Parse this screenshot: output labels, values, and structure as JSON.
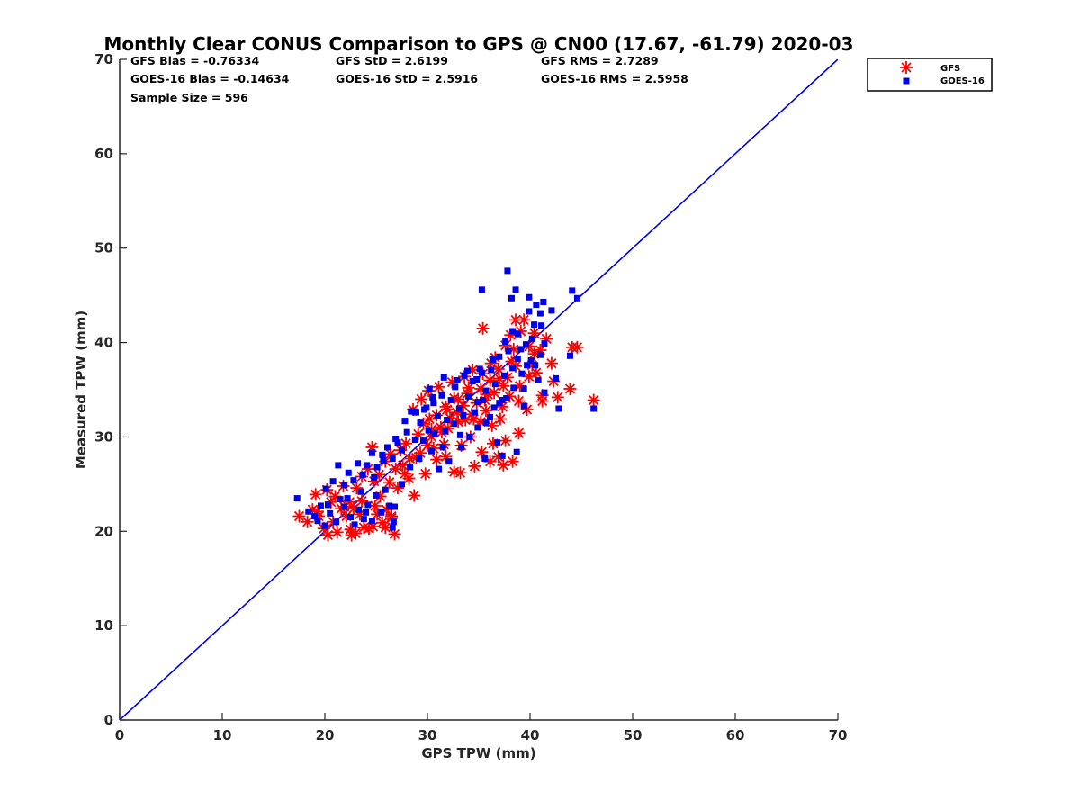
{
  "chart_data": {
    "type": "scatter",
    "title": "Monthly Clear CONUS Comparison to GPS @ CN00 (17.67, -61.79) 2020-03",
    "xlabel": "GPS TPW (mm)",
    "ylabel": "Measured TPW (mm)",
    "xlim": [
      0,
      70
    ],
    "ylim": [
      0,
      70
    ],
    "xticks": [
      "0",
      "10",
      "20",
      "30",
      "40",
      "50",
      "60",
      "70"
    ],
    "yticks": [
      "0",
      "10",
      "20",
      "30",
      "40",
      "50",
      "60",
      "70"
    ],
    "grid": false,
    "legend_position": "top-right-outside",
    "stats": {
      "gfs_bias": "GFS Bias = -0.76334",
      "gfs_std": "GFS StD = 2.6199",
      "gfs_rms": "GFS RMS = 2.7289",
      "goes_bias": "GOES-16 Bias = -0.14634",
      "goes_std": "GOES-16 StD = 2.5916",
      "goes_rms": "GOES-16 RMS = 2.5958",
      "sample_size": "Sample Size = 596"
    },
    "reference_line": {
      "name": "1:1",
      "x": [
        0,
        70
      ],
      "y": [
        0,
        70
      ],
      "color": "#0000e6"
    },
    "series": [
      {
        "name": "GFS",
        "marker": "asterisk",
        "color": "#ff0000",
        "points": [
          [
            17.5,
            21.6
          ],
          [
            18.3,
            21.0
          ],
          [
            18.8,
            22.3
          ],
          [
            19.4,
            21.6
          ],
          [
            19.9,
            20.3
          ],
          [
            20.3,
            19.6
          ],
          [
            20.8,
            21.0
          ],
          [
            21.2,
            19.9
          ],
          [
            21.6,
            22.4
          ],
          [
            22.1,
            21.6
          ],
          [
            22.5,
            20.2
          ],
          [
            23.0,
            19.8
          ],
          [
            23.4,
            21.8
          ],
          [
            23.8,
            20.4
          ],
          [
            24.3,
            20.3
          ],
          [
            24.7,
            20.5
          ],
          [
            25.1,
            21.8
          ],
          [
            25.6,
            20.9
          ],
          [
            26.0,
            22.3
          ],
          [
            26.5,
            21.4
          ],
          [
            26.8,
            19.7
          ],
          [
            20.2,
            24.4
          ],
          [
            21.0,
            23.7
          ],
          [
            21.8,
            24.8
          ],
          [
            22.4,
            23.1
          ],
          [
            23.1,
            24.6
          ],
          [
            23.6,
            25.8
          ],
          [
            24.2,
            26.6
          ],
          [
            24.8,
            25.3
          ],
          [
            25.3,
            26.0
          ],
          [
            25.9,
            27.4
          ],
          [
            26.4,
            28.2
          ],
          [
            26.9,
            26.6
          ],
          [
            27.4,
            28.6
          ],
          [
            27.9,
            29.3
          ],
          [
            28.3,
            27.7
          ],
          [
            28.7,
            23.8
          ],
          [
            29.1,
            30.3
          ],
          [
            29.6,
            31.4
          ],
          [
            30.0,
            29.1
          ],
          [
            30.4,
            30.8
          ],
          [
            30.9,
            32.3
          ],
          [
            31.3,
            31.0
          ],
          [
            31.8,
            33.2
          ],
          [
            32.2,
            32.0
          ],
          [
            32.6,
            34.1
          ],
          [
            33.0,
            31.6
          ],
          [
            33.5,
            33.3
          ],
          [
            33.9,
            34.6
          ],
          [
            34.3,
            32.4
          ],
          [
            34.8,
            33.6
          ],
          [
            35.2,
            35.1
          ],
          [
            35.6,
            33.9
          ],
          [
            36.1,
            36.0
          ],
          [
            36.5,
            34.7
          ],
          [
            36.9,
            37.2
          ],
          [
            37.4,
            35.4
          ],
          [
            37.8,
            36.3
          ],
          [
            38.2,
            38.0
          ],
          [
            38.6,
            37.5
          ],
          [
            39.0,
            35.4
          ],
          [
            39.4,
            42.4
          ],
          [
            38.1,
            40.8
          ],
          [
            38.6,
            42.4
          ],
          [
            39.9,
            39.6
          ],
          [
            40.4,
            38.8
          ],
          [
            41.0,
            39.2
          ],
          [
            41.6,
            40.4
          ],
          [
            42.1,
            37.8
          ],
          [
            40.6,
            36.8
          ],
          [
            41.2,
            34.4
          ],
          [
            42.3,
            35.9
          ],
          [
            42.7,
            34.2
          ],
          [
            43.9,
            35.1
          ],
          [
            44.1,
            39.5
          ],
          [
            44.6,
            39.5
          ],
          [
            46.2,
            33.9
          ],
          [
            35.4,
            41.5
          ],
          [
            31.8,
            27.9
          ],
          [
            32.6,
            26.3
          ],
          [
            33.2,
            26.2
          ],
          [
            34.6,
            26.9
          ],
          [
            36.1,
            27.4
          ],
          [
            36.9,
            27.9
          ],
          [
            37.4,
            27.0
          ],
          [
            38.3,
            27.4
          ],
          [
            38.9,
            30.4
          ],
          [
            37.6,
            29.6
          ],
          [
            36.4,
            29.3
          ],
          [
            35.3,
            28.4
          ],
          [
            34.2,
            30.0
          ],
          [
            33.3,
            29.1
          ],
          [
            29.8,
            26.1
          ],
          [
            30.9,
            27.6
          ],
          [
            28.6,
            32.9
          ],
          [
            29.4,
            34.0
          ],
          [
            30.1,
            34.9
          ],
          [
            31.1,
            35.3
          ],
          [
            32.4,
            35.8
          ],
          [
            33.6,
            36.4
          ],
          [
            34.4,
            37.1
          ],
          [
            36.6,
            38.4
          ],
          [
            40.2,
            37.6
          ],
          [
            37.6,
            39.7
          ],
          [
            39.9,
            36.4
          ],
          [
            38.9,
            33.8
          ],
          [
            39.7,
            32.9
          ],
          [
            41.2,
            33.8
          ],
          [
            36.3,
            31.2
          ],
          [
            37.1,
            31.9
          ],
          [
            35.2,
            31.6
          ],
          [
            31.6,
            29.2
          ],
          [
            30.4,
            30.0
          ],
          [
            27.6,
            27.0
          ],
          [
            26.3,
            25.2
          ],
          [
            24.6,
            28.9
          ],
          [
            23.6,
            23.2
          ],
          [
            22.8,
            22.4
          ],
          [
            21.9,
            22.6
          ],
          [
            20.6,
            23.1
          ],
          [
            19.1,
            23.9
          ],
          [
            25.4,
            23.7
          ],
          [
            27.1,
            24.6
          ],
          [
            28.2,
            25.6
          ],
          [
            29.3,
            28.3
          ],
          [
            30.6,
            28.8
          ],
          [
            31.4,
            30.5
          ],
          [
            32.0,
            30.9
          ],
          [
            32.9,
            32.6
          ],
          [
            33.7,
            31.8
          ],
          [
            34.5,
            31.9
          ],
          [
            35.7,
            32.8
          ],
          [
            37.3,
            33.2
          ],
          [
            38.0,
            34.3
          ],
          [
            26.5,
            21.6
          ],
          [
            25.9,
            20.4
          ],
          [
            22.6,
            19.6
          ],
          [
            19.3,
            22.1
          ],
          [
            24.9,
            22.7
          ],
          [
            27.8,
            26.1
          ],
          [
            28.9,
            27.8
          ],
          [
            30.2,
            31.9
          ],
          [
            31.9,
            32.9
          ],
          [
            33.0,
            34.0
          ],
          [
            34.0,
            35.2
          ],
          [
            35.4,
            36.7
          ],
          [
            36.2,
            37.8
          ],
          [
            39.1,
            41.2
          ],
          [
            40.4,
            41.0
          ],
          [
            38.4,
            39.3
          ],
          [
            37.0,
            36.2
          ],
          [
            35.9,
            34.5
          ]
        ]
      },
      {
        "name": "GOES-16",
        "marker": "square",
        "color": "#0000e6",
        "points": [
          [
            17.3,
            23.5
          ],
          [
            18.4,
            22.1
          ],
          [
            19.0,
            21.6
          ],
          [
            19.6,
            22.7
          ],
          [
            20.0,
            20.6
          ],
          [
            20.5,
            21.9
          ],
          [
            21.1,
            21.0
          ],
          [
            21.5,
            23.4
          ],
          [
            21.9,
            22.6
          ],
          [
            22.5,
            21.5
          ],
          [
            22.9,
            20.7
          ],
          [
            23.3,
            22.3
          ],
          [
            23.8,
            21.3
          ],
          [
            24.2,
            22.8
          ],
          [
            24.6,
            21.1
          ],
          [
            25.0,
            23.8
          ],
          [
            25.5,
            22.0
          ],
          [
            25.9,
            24.4
          ],
          [
            26.3,
            22.7
          ],
          [
            26.7,
            21.0
          ],
          [
            20.1,
            24.5
          ],
          [
            20.8,
            25.3
          ],
          [
            21.3,
            27.0
          ],
          [
            21.9,
            24.9
          ],
          [
            22.3,
            26.2
          ],
          [
            22.8,
            25.4
          ],
          [
            23.2,
            27.2
          ],
          [
            23.7,
            26.0
          ],
          [
            24.1,
            27.0
          ],
          [
            24.6,
            28.3
          ],
          [
            25.1,
            26.8
          ],
          [
            25.7,
            27.5
          ],
          [
            26.1,
            28.9
          ],
          [
            26.6,
            27.7
          ],
          [
            27.1,
            29.4
          ],
          [
            27.5,
            28.6
          ],
          [
            28.0,
            30.5
          ],
          [
            28.4,
            32.7
          ],
          [
            28.8,
            29.7
          ],
          [
            29.3,
            31.5
          ],
          [
            29.7,
            32.9
          ],
          [
            30.1,
            30.7
          ],
          [
            30.6,
            33.6
          ],
          [
            31.0,
            32.2
          ],
          [
            31.4,
            34.4
          ],
          [
            31.9,
            31.8
          ],
          [
            32.3,
            33.9
          ],
          [
            32.7,
            35.3
          ],
          [
            33.1,
            33.0
          ],
          [
            33.6,
            36.5
          ],
          [
            34.0,
            34.3
          ],
          [
            34.4,
            35.9
          ],
          [
            34.9,
            33.7
          ],
          [
            35.3,
            36.8
          ],
          [
            35.7,
            34.9
          ],
          [
            36.2,
            37.1
          ],
          [
            36.6,
            35.6
          ],
          [
            37.0,
            38.5
          ],
          [
            37.5,
            36.5
          ],
          [
            37.9,
            39.1
          ],
          [
            38.3,
            37.3
          ],
          [
            38.8,
            38.3
          ],
          [
            39.2,
            36.7
          ],
          [
            39.6,
            39.8
          ],
          [
            40.1,
            38.1
          ],
          [
            40.5,
            37.6
          ],
          [
            41.0,
            38.7
          ],
          [
            41.4,
            39.9
          ],
          [
            37.8,
            47.6
          ],
          [
            38.6,
            45.6
          ],
          [
            38.2,
            44.7
          ],
          [
            35.3,
            45.6
          ],
          [
            39.9,
            44.8
          ],
          [
            40.6,
            44.0
          ],
          [
            41.3,
            44.3
          ],
          [
            41.0,
            43.1
          ],
          [
            42.1,
            43.4
          ],
          [
            39.9,
            43.3
          ],
          [
            40.4,
            41.9
          ],
          [
            38.3,
            41.2
          ],
          [
            38.8,
            40.9
          ],
          [
            44.1,
            45.5
          ],
          [
            44.6,
            44.7
          ],
          [
            43.9,
            38.6
          ],
          [
            42.5,
            36.2
          ],
          [
            42.8,
            33.0
          ],
          [
            46.2,
            33.0
          ],
          [
            39.4,
            33.3
          ],
          [
            38.7,
            28.4
          ],
          [
            37.3,
            28.0
          ],
          [
            36.8,
            29.4
          ],
          [
            35.6,
            27.7
          ],
          [
            34.9,
            31.0
          ],
          [
            34.1,
            30.0
          ],
          [
            33.3,
            28.9
          ],
          [
            32.1,
            27.4
          ],
          [
            31.1,
            26.6
          ],
          [
            30.4,
            28.5
          ],
          [
            29.2,
            27.7
          ],
          [
            36.1,
            32.1
          ],
          [
            37.3,
            33.9
          ],
          [
            38.4,
            35.2
          ],
          [
            39.4,
            35.1
          ],
          [
            40.8,
            36.0
          ],
          [
            41.4,
            34.7
          ],
          [
            39.7,
            37.6
          ],
          [
            37.0,
            33.6
          ],
          [
            35.7,
            31.5
          ],
          [
            33.2,
            30.2
          ],
          [
            31.5,
            28.9
          ],
          [
            30.2,
            35.1
          ],
          [
            28.9,
            32.6
          ],
          [
            27.8,
            31.7
          ],
          [
            26.9,
            29.8
          ],
          [
            25.6,
            28.1
          ],
          [
            24.8,
            25.7
          ],
          [
            23.5,
            24.2
          ],
          [
            22.2,
            23.5
          ],
          [
            20.3,
            22.8
          ],
          [
            19.3,
            21.1
          ],
          [
            26.8,
            22.6
          ],
          [
            26.6,
            20.4
          ],
          [
            24.0,
            22.0
          ],
          [
            27.5,
            25.0
          ],
          [
            28.3,
            26.8
          ],
          [
            29.6,
            29.6
          ],
          [
            30.7,
            30.3
          ],
          [
            31.7,
            30.6
          ],
          [
            32.6,
            31.4
          ],
          [
            33.5,
            32.3
          ],
          [
            34.6,
            32.6
          ],
          [
            35.4,
            33.9
          ],
          [
            36.5,
            33.1
          ],
          [
            37.7,
            34.1
          ],
          [
            34.8,
            36.1
          ],
          [
            33.9,
            37.0
          ],
          [
            32.9,
            36.0
          ],
          [
            31.6,
            36.3
          ],
          [
            30.5,
            34.2
          ],
          [
            29.9,
            33.1
          ],
          [
            28.7,
            32.7
          ],
          [
            35.1,
            37.2
          ],
          [
            36.4,
            38.2
          ],
          [
            37.6,
            40.1
          ],
          [
            39.1,
            39.3
          ],
          [
            40.2,
            40.4
          ],
          [
            41.1,
            41.8
          ]
        ]
      }
    ]
  }
}
